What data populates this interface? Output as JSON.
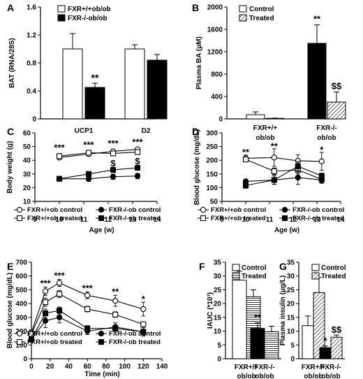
{
  "chart_data": [
    {
      "panel": "A",
      "type": "bar",
      "ylabel": "BAT (RNA/28S)",
      "ylim": [
        0,
        1.6
      ],
      "yticks": [
        0,
        0.4,
        0.8,
        1.2,
        1.6
      ],
      "ytick_labels": [
        "0",
        "0.4",
        "0.8",
        "1.2",
        "1.6"
      ],
      "categories": [
        "UCP1",
        "D2"
      ],
      "series": [
        {
          "name": "FXR+/+ob/ob",
          "values": [
            1.0,
            1.0
          ],
          "errors": [
            0.22,
            0.06
          ],
          "fill": "white"
        },
        {
          "name": "FXR-/-ob/ob",
          "values": [
            0.45,
            0.84
          ],
          "errors": [
            0.06,
            0.08
          ],
          "fill": "black"
        }
      ],
      "annotations": [
        {
          "series": 1,
          "category": 0,
          "text": "**"
        }
      ],
      "legend": "top-left"
    },
    {
      "panel": "B",
      "type": "bar",
      "ylabel": "Plasma BA (μM)",
      "ylim": [
        0,
        2000
      ],
      "yticks": [
        0,
        400,
        800,
        1200,
        1600,
        2000
      ],
      "ytick_labels": [
        "0",
        "400",
        "800",
        "1200",
        "1600",
        "2000"
      ],
      "categories": [
        "FXR+/+ ob/ob",
        "FXR-/- ob/ob"
      ],
      "series": [
        {
          "name": "Control",
          "values": [
            75,
            1350
          ],
          "errors": [
            50,
            330
          ],
          "fill": "white-black"
        },
        {
          "name": "Treated",
          "values": [
            10,
            300
          ],
          "errors": [
            5,
            180
          ],
          "fill": "hatch"
        }
      ],
      "annotations": [
        {
          "series": 0,
          "category": 1,
          "text": "**"
        },
        {
          "series": 1,
          "category": 1,
          "text": "$$"
        }
      ],
      "legend": "top-left"
    },
    {
      "panel": "C",
      "type": "line",
      "xlabel": "Age (w)",
      "ylabel": "Body weight (g)",
      "xlim": [
        9,
        14
      ],
      "xticks": [
        9,
        10,
        11,
        12,
        13,
        14
      ],
      "xtick_labels": [
        "9",
        "10",
        "11",
        "12",
        "13",
        "14"
      ],
      "ylim": [
        10,
        60
      ],
      "yticks": [
        10,
        20,
        30,
        40,
        50,
        60
      ],
      "ytick_labels": [
        "10",
        "20",
        "30",
        "40",
        "50",
        "60"
      ],
      "x": [
        10,
        11.2,
        12.2,
        13.2
      ],
      "series": [
        {
          "name": "FXR+/+ob control",
          "values": [
            42,
            44.5,
            46.5,
            48
          ],
          "errors": [
            1,
            1,
            1,
            1
          ],
          "marker": "circle-open"
        },
        {
          "name": "FXR+/+ob treated",
          "values": [
            43,
            45.5,
            45,
            46
          ],
          "errors": [
            1.5,
            1.5,
            1.5,
            1.5
          ],
          "marker": "square-open"
        },
        {
          "name": "FXR-/-ob control",
          "values": [
            26.5,
            26.5,
            28,
            28.5
          ],
          "errors": [
            1.5,
            2,
            2,
            2
          ],
          "marker": "circle-filled"
        },
        {
          "name": "FXR-/-ob treated",
          "values": [
            26.5,
            30,
            33,
            34.5
          ],
          "errors": [
            1,
            1,
            1,
            1
          ],
          "marker": "square-filled"
        }
      ],
      "annotations": [
        {
          "x": 10,
          "y": 49,
          "text": "***"
        },
        {
          "x": 11.2,
          "y": 51,
          "text": "***"
        },
        {
          "x": 12.2,
          "y": 52,
          "text": "***"
        },
        {
          "x": 13.2,
          "y": 53,
          "text": "***"
        },
        {
          "x": 12.2,
          "y": 37.5,
          "text": "$"
        },
        {
          "x": 13.2,
          "y": 39,
          "text": "$"
        }
      ],
      "legend": "bottom"
    },
    {
      "panel": "D",
      "type": "line",
      "xlabel": "Age (w)",
      "ylabel": "Blood glucose (mg/dL)",
      "xlim": [
        9,
        14
      ],
      "xticks": [
        9,
        10,
        11,
        12,
        13,
        14
      ],
      "xtick_labels": [
        "9",
        "10",
        "11",
        "12",
        "13",
        "14"
      ],
      "ylim": [
        50,
        300
      ],
      "yticks": [
        50,
        100,
        150,
        200,
        250,
        300
      ],
      "ytick_labels": [
        "50",
        "100",
        "150",
        "200",
        "250",
        "300"
      ],
      "x": [
        10,
        11.2,
        12.2,
        13.2
      ],
      "series": [
        {
          "name": "FXR+/+ob control",
          "values": [
            207,
            210,
            198,
            196
          ],
          "errors": [
            12,
            32,
            22,
            33
          ],
          "marker": "circle-open"
        },
        {
          "name": "FXR+/+ob treated",
          "values": [
            203,
            160,
            165,
            130
          ],
          "errors": [
            8,
            12,
            15,
            12
          ],
          "marker": "square-open"
        },
        {
          "name": "FXR-/-ob control",
          "values": [
            123,
            128,
            137,
            128
          ],
          "errors": [
            8,
            16,
            25,
            12
          ],
          "marker": "circle-filled"
        },
        {
          "name": "FXR-/-ob treated",
          "values": [
            108,
            128,
            178,
            143
          ],
          "errors": [
            10,
            16,
            18,
            10
          ],
          "marker": "square-filled"
        }
      ],
      "annotations": [
        {
          "x": 10,
          "y": 228,
          "text": "**"
        },
        {
          "x": 11.2,
          "y": 250,
          "text": "**"
        },
        {
          "x": 13.2,
          "y": 238,
          "text": "*"
        }
      ],
      "legend": "bottom"
    },
    {
      "panel": "E",
      "type": "line",
      "xlabel": "Time (min)",
      "ylabel": "Blood glucose (mg/dL)",
      "xlim": [
        0,
        140
      ],
      "xticks": [
        0,
        20,
        40,
        60,
        80,
        100,
        120,
        140
      ],
      "xtick_labels": [
        "0",
        "20",
        "40",
        "60",
        "80",
        "100",
        "120",
        "140"
      ],
      "ylim": [
        0,
        700
      ],
      "yticks": [
        0,
        100,
        200,
        300,
        400,
        500,
        600,
        700
      ],
      "ytick_labels": [
        "0",
        "100",
        "200",
        "300",
        "400",
        "500",
        "600",
        "700"
      ],
      "x": [
        0,
        15,
        30,
        60,
        90,
        120
      ],
      "series": [
        {
          "name": "FXR+/+ob control",
          "values": [
            190,
            490,
            550,
            460,
            420,
            360
          ],
          "errors": [
            20,
            30,
            25,
            25,
            40,
            50
          ],
          "marker": "circle-open"
        },
        {
          "name": "FXR+/+ob treated",
          "values": [
            180,
            410,
            470,
            360,
            320,
            250
          ],
          "errors": [
            20,
            30,
            25,
            20,
            20,
            15
          ],
          "marker": "square-open"
        },
        {
          "name": "FXR-/-ob control",
          "values": [
            140,
            275,
            300,
            200,
            230,
            195
          ],
          "errors": [
            20,
            50,
            40,
            25,
            30,
            30
          ],
          "marker": "circle-filled"
        },
        {
          "name": "FXR-/-ob treated",
          "values": [
            140,
            330,
            350,
            220,
            220,
            195
          ],
          "errors": [
            15,
            30,
            25,
            20,
            20,
            20
          ],
          "marker": "square-filled"
        }
      ],
      "annotations": [
        {
          "x": 15,
          "y": 545,
          "text": "***"
        },
        {
          "x": 30,
          "y": 600,
          "text": "***"
        },
        {
          "x": 60,
          "y": 510,
          "text": "***"
        },
        {
          "x": 90,
          "y": 485,
          "text": "**"
        },
        {
          "x": 120,
          "y": 430,
          "text": "*"
        }
      ],
      "legend": "bottom"
    },
    {
      "panel": "F",
      "type": "bar",
      "ylabel": "IAUC (*10³)",
      "ylim": [
        0,
        35
      ],
      "yticks": [
        0,
        5,
        10,
        15,
        20,
        25,
        30,
        35
      ],
      "ytick_labels": [
        "0",
        "5",
        "10",
        "15",
        "20",
        "25",
        "30",
        "35"
      ],
      "categories": [
        "FXR+/+ ob/ob",
        "FXR-/- ob/ob"
      ],
      "series": [
        {
          "name": "Control",
          "values": [
            28.5,
            11
          ],
          "errors": [
            3.2,
            2
          ],
          "fill": "white-black"
        },
        {
          "name": "Treated",
          "values": [
            22.5,
            9.8
          ],
          "errors": [
            2.5,
            2
          ],
          "fill": "hatch"
        }
      ],
      "annotations": [
        {
          "series": 0,
          "category": 1,
          "text": "**"
        }
      ],
      "legend": "top-right"
    },
    {
      "panel": "G",
      "type": "bar",
      "ylabel": "Plasma insulin (μg/L)",
      "ylim": [
        0,
        35
      ],
      "yticks": [
        0,
        5,
        10,
        15,
        20,
        25,
        30,
        35
      ],
      "ytick_labels": [
        "0",
        "5",
        "10",
        "15",
        "20",
        "25",
        "30",
        "35"
      ],
      "categories": [
        "FXR+/+ ob/ob",
        "FXR-/- ob/ob"
      ],
      "series": [
        {
          "name": "Control",
          "values": [
            12,
            4
          ],
          "errors": [
            3.5,
            0.6
          ],
          "fill": "white-black"
        },
        {
          "name": "Treated",
          "values": [
            24,
            7.8
          ],
          "errors": [
            5.5,
            0.8
          ],
          "fill": "hatch"
        }
      ],
      "annotations": [
        {
          "series": 0,
          "category": 1,
          "text": "*"
        },
        {
          "series": 1,
          "category": 1,
          "text": "$$"
        }
      ],
      "legend": "top-right"
    }
  ]
}
